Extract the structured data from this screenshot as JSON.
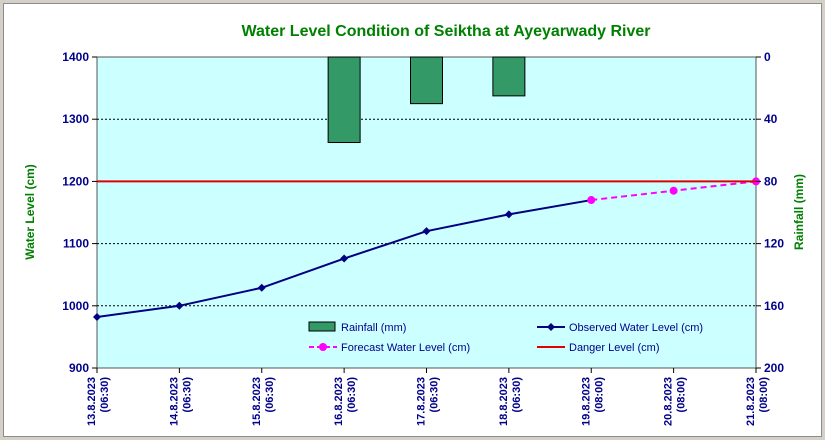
{
  "chart_data": {
    "type": "line",
    "title": "Water Level Condition  of Seiktha  at Ayeyarwady  River",
    "ylabel": "Water Level (cm)",
    "y2label": "Rainfall (mm)",
    "ylim": [
      900,
      1400
    ],
    "yticks": [
      900,
      1000,
      1100,
      1200,
      1300,
      1400
    ],
    "y2lim": [
      0,
      200
    ],
    "y2ticks": [
      0,
      40,
      80,
      120,
      160,
      200
    ],
    "y2_inverted": true,
    "categories": [
      [
        "13.8.2023",
        "(06:30)"
      ],
      [
        "14.8.2023",
        "(06:30)"
      ],
      [
        "15.8.2023",
        "(06:30)"
      ],
      [
        "16.8.2023",
        "(06:30)"
      ],
      [
        "17.8.2023",
        "(06:30)"
      ],
      [
        "18.8.2023",
        "(06:30)"
      ],
      [
        "19.8.2023",
        "(08:00)"
      ],
      [
        "20.8.2023",
        "(08:00)"
      ],
      [
        "21.8.2023",
        "(08:00)"
      ]
    ],
    "series": [
      {
        "name": "Rainfall (mm)",
        "type": "bar",
        "axis": "y2",
        "color": "#339966",
        "values": [
          null,
          null,
          null,
          55,
          30,
          25,
          null,
          null,
          null
        ]
      },
      {
        "name": "Observed Water Level (cm)",
        "type": "line",
        "axis": "y",
        "color": "#000080",
        "marker": "diamond",
        "values": [
          982,
          1000,
          1029,
          1076,
          1120,
          1147,
          1170,
          null,
          null
        ]
      },
      {
        "name": "Forecast Water Level (cm)",
        "type": "line",
        "axis": "y",
        "color": "#ff00ff",
        "dashed": true,
        "marker": "circle",
        "values": [
          null,
          null,
          null,
          null,
          null,
          null,
          1170,
          1185,
          1200
        ]
      },
      {
        "name": "Danger Level (cm)",
        "type": "hline",
        "axis": "y",
        "color": "#e00000",
        "value": 1200
      }
    ],
    "plot_background": "#ccffff",
    "grid": true,
    "legend_position": "bottom-center-inside"
  }
}
